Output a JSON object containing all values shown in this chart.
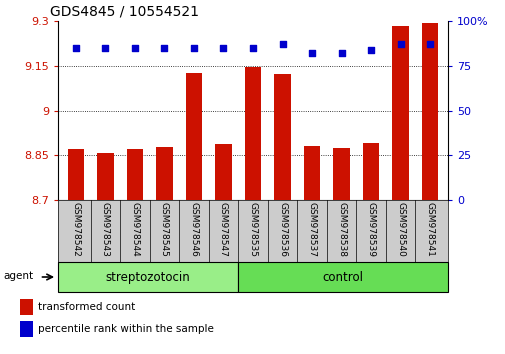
{
  "title": "GDS4845 / 10554521",
  "samples": [
    "GSM978542",
    "GSM978543",
    "GSM978544",
    "GSM978545",
    "GSM978546",
    "GSM978547",
    "GSM978535",
    "GSM978536",
    "GSM978537",
    "GSM978538",
    "GSM978539",
    "GSM978540",
    "GSM978541"
  ],
  "bar_values": [
    8.872,
    8.858,
    8.872,
    8.878,
    9.125,
    8.888,
    9.148,
    9.122,
    8.882,
    8.875,
    8.893,
    9.285,
    9.295
  ],
  "percentile_values": [
    85,
    85,
    85,
    85,
    85,
    85,
    85,
    87,
    82,
    82,
    84,
    87,
    87
  ],
  "bar_color": "#cc1100",
  "percentile_color": "#0000cc",
  "ylim_left": [
    8.7,
    9.3
  ],
  "ylim_right": [
    0,
    100
  ],
  "yticks_left": [
    8.7,
    8.85,
    9.0,
    9.15,
    9.3
  ],
  "yticks_right": [
    0,
    25,
    50,
    75,
    100
  ],
  "ytick_labels_left": [
    "8.7",
    "8.85",
    "9",
    "9.15",
    "9.3"
  ],
  "ytick_labels_right": [
    "0",
    "25",
    "50",
    "75",
    "100%"
  ],
  "group1_label": "streptozotocin",
  "group2_label": "control",
  "group1_color": "#99ee88",
  "group2_color": "#66dd55",
  "group1_count": 6,
  "group2_count": 7,
  "agent_label": "agent",
  "legend_bar_label": "transformed count",
  "legend_pct_label": "percentile rank within the sample",
  "bar_width": 0.55,
  "tick_label_color_left": "#cc1100",
  "tick_label_color_right": "#0000cc",
  "grid_dotted_values": [
    8.85,
    9.0,
    9.15
  ],
  "background_color": "#ffffff",
  "xlabel_bg_color": "#cccccc"
}
